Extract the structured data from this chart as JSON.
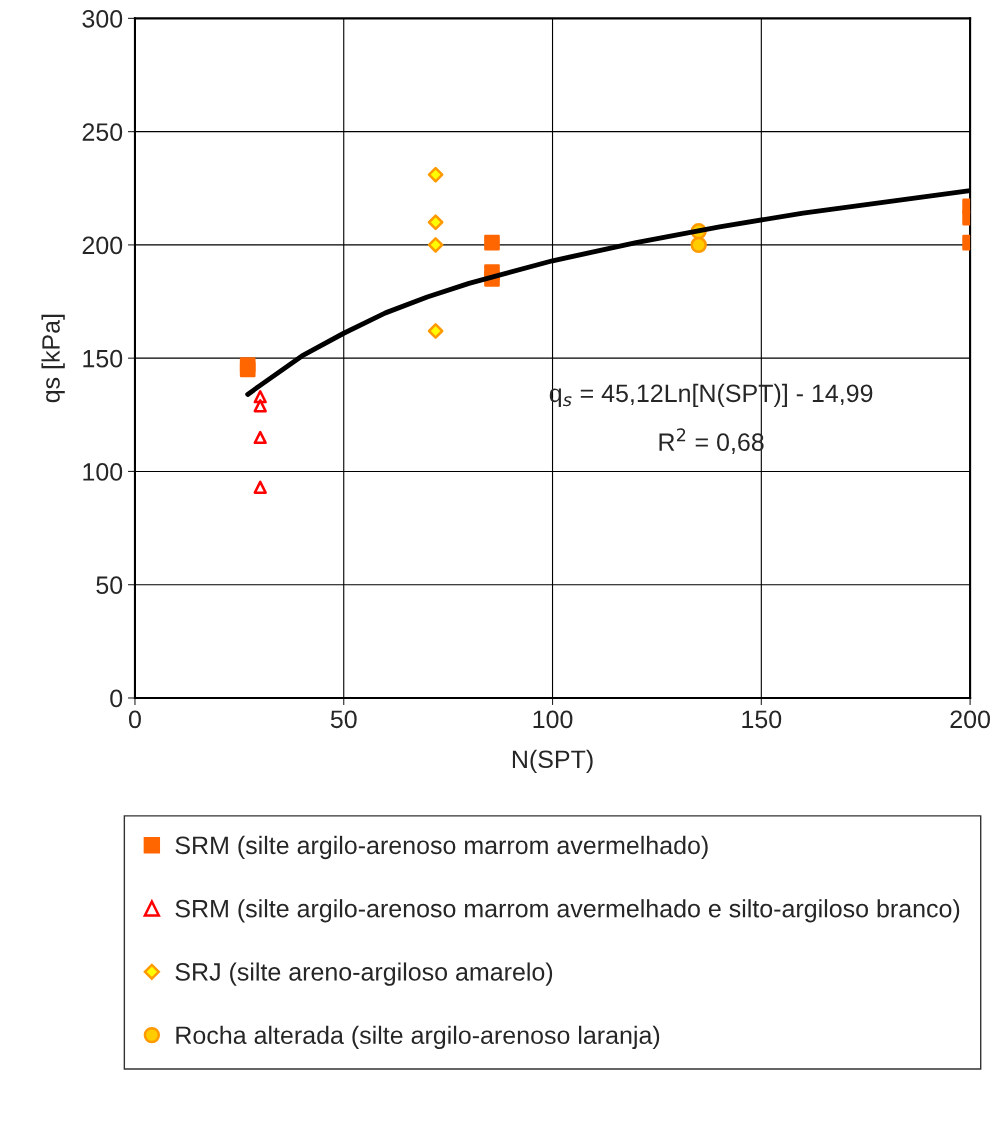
{
  "chart_data": {
    "type": "scatter",
    "xlabel": "N(SPT)",
    "ylabel": "qs [kPa]",
    "xlim": [
      0,
      200
    ],
    "xticks": [
      0,
      50,
      100,
      150,
      200
    ],
    "ylim": [
      0,
      300
    ],
    "yticks": [
      0,
      50,
      100,
      150,
      200,
      250,
      300
    ],
    "grid": true,
    "legend": "bottom",
    "annotations": [
      "q$_{s}$ = 45,12Ln[N(SPT)] - 14,99",
      "R$^{2}$ = 0,68"
    ],
    "series": [
      {
        "name": "SRM (silte argilo-arenoso marrom avermelhado)",
        "color": "#ff6600",
        "marker": "square",
        "x": [
          27,
          27,
          85.5,
          85.5,
          85.5,
          200,
          200,
          200
        ],
        "values": [
          147,
          145,
          201,
          188,
          185,
          217,
          212,
          201
        ]
      },
      {
        "name": "SRM (silte argilo-arenoso marrom avermelhado e silto-argiloso branco)",
        "color": "#ff0000",
        "marker": "triangle",
        "x": [
          30,
          30,
          30,
          30
        ],
        "values": [
          133,
          129,
          115,
          93
        ]
      },
      {
        "name": "SRJ (silte areno-argiloso amarelo)",
        "color": "#ffff00",
        "marker": "diamond",
        "x": [
          72,
          72,
          72,
          72
        ],
        "values": [
          231,
          210,
          200,
          162
        ]
      },
      {
        "name": "Rocha alterada (silte argilo-arenoso laranja)",
        "color": "#ffcc00",
        "marker": "circle",
        "x": [
          135,
          135
        ],
        "values": [
          206,
          200
        ]
      },
      {
        "type": "line",
        "color": "#000000",
        "marker": "none",
        "x": [
          27,
          30,
          40,
          50,
          60,
          70,
          80,
          100,
          120,
          140,
          160,
          180,
          200
        ],
        "values": [
          134,
          138,
          151,
          161,
          170,
          177,
          183,
          193,
          201,
          208,
          214,
          219,
          224
        ]
      }
    ]
  }
}
